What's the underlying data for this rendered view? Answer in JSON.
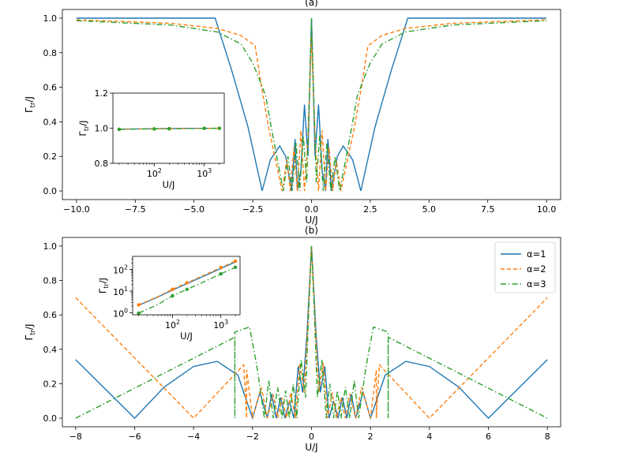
{
  "colors": {
    "s1": "#1f77b4",
    "s2": "#ff7f0e",
    "s3": "#2ca02c"
  },
  "chart_data": [
    {
      "id": "a",
      "type": "line",
      "title": "(a)",
      "xlabel": "U/J",
      "ylabel": "Γ_tr/J",
      "ylabel_main": "Γ",
      "ylabel_sub": "tr",
      "ylabel_tail": "/J",
      "xlim": [
        -10.6,
        10.6
      ],
      "ylim": [
        -0.05,
        1.05
      ],
      "xticks": [
        -10,
        -7.5,
        -5,
        -2.5,
        0,
        2.5,
        5,
        7.5,
        10
      ],
      "xtick_labels": [
        "−10.0",
        "−7.5",
        "−5.0",
        "−2.5",
        "0.0",
        "2.5",
        "5.0",
        "7.5",
        "10.0"
      ],
      "yticks": [
        0,
        0.2,
        0.4,
        0.6,
        0.8,
        1.0
      ],
      "ytick_labels": [
        "0.0",
        "0.2",
        "0.4",
        "0.6",
        "0.8",
        "1.0"
      ],
      "series": [
        {
          "name": "α=1",
          "x": [
            -10,
            -4.1,
            -3.4,
            -2.7,
            -2.1,
            -1.75,
            -1.35,
            -1.1,
            -0.85,
            -0.7,
            -0.6,
            -0.45,
            -0.3,
            -0.15,
            0,
            0.15,
            0.3,
            0.45,
            0.6,
            0.7,
            0.85,
            1.1,
            1.35,
            1.75,
            2.1,
            2.7,
            3.4,
            4.1,
            10
          ],
          "y": [
            1.0,
            1.0,
            0.7,
            0.37,
            0.0,
            0.18,
            0.26,
            0.2,
            0.0,
            0.3,
            0.0,
            0.12,
            0.5,
            0.2,
            1.0,
            0.2,
            0.5,
            0.12,
            0.0,
            0.3,
            0.0,
            0.2,
            0.26,
            0.18,
            0.0,
            0.37,
            0.7,
            1.0,
            1.0
          ]
        },
        {
          "name": "α=2",
          "x": [
            -10,
            -6,
            -4,
            -3,
            -2.4,
            -2.15,
            -1.8,
            -1.5,
            -1.25,
            -1.05,
            -0.9,
            -0.75,
            -0.6,
            -0.45,
            -0.3,
            -0.15,
            0,
            0.15,
            0.3,
            0.45,
            0.6,
            0.75,
            0.9,
            1.05,
            1.25,
            1.5,
            1.8,
            2.15,
            2.4,
            3,
            4,
            6,
            10
          ],
          "y": [
            0.99,
            0.97,
            0.94,
            0.9,
            0.84,
            0.62,
            0.35,
            0.16,
            0.0,
            0.18,
            0.0,
            0.25,
            0.0,
            0.35,
            0.0,
            0.3,
            0.9,
            0.3,
            0.0,
            0.35,
            0.0,
            0.25,
            0.0,
            0.18,
            0.0,
            0.16,
            0.35,
            0.62,
            0.84,
            0.9,
            0.94,
            0.97,
            0.99
          ]
        },
        {
          "name": "α=3",
          "x": [
            -10,
            -6,
            -4,
            -3,
            -2.5,
            -2.2,
            -1.95,
            -1.7,
            -1.45,
            -1.2,
            -1.0,
            -0.82,
            -0.66,
            -0.5,
            -0.35,
            -0.2,
            0,
            0.2,
            0.35,
            0.5,
            0.66,
            0.82,
            1.0,
            1.2,
            1.45,
            1.7,
            1.95,
            2.2,
            2.5,
            3,
            4,
            6,
            10
          ],
          "y": [
            0.985,
            0.96,
            0.92,
            0.85,
            0.74,
            0.64,
            0.55,
            0.36,
            0.18,
            0.0,
            0.2,
            0.0,
            0.28,
            0.0,
            0.32,
            0.05,
            1.0,
            0.05,
            0.32,
            0.0,
            0.28,
            0.0,
            0.2,
            0.0,
            0.18,
            0.36,
            0.55,
            0.64,
            0.74,
            0.85,
            0.92,
            0.96,
            0.985
          ]
        }
      ],
      "inset": {
        "type": "line",
        "xscale": "log",
        "xlabel": "U/J",
        "ylabel_main": "Γ",
        "ylabel_sub": "tr",
        "ylabel_tail": "/J",
        "xlim": [
          15,
          2500
        ],
        "ylim": [
          0.8,
          1.2
        ],
        "xticks": [
          100,
          1000
        ],
        "xtick_base": "10",
        "xtick_exp": [
          "2",
          "3"
        ],
        "yticks": [
          0.8,
          1.0,
          1.2
        ],
        "ytick_labels": [
          "0.8",
          "1.0",
          "1.2"
        ],
        "series": [
          {
            "name": "α=1",
            "x": [
              20,
              50,
              100,
              200,
              500,
              1000,
              2000
            ],
            "y": [
              0.995,
              0.996,
              0.997,
              0.998,
              0.999,
              0.999,
              1.0
            ]
          },
          {
            "name": "α=2",
            "x": [
              20,
              50,
              100,
              200,
              500,
              1000,
              2000
            ],
            "y": [
              0.994,
              0.995,
              0.996,
              0.997,
              0.998,
              0.999,
              0.999
            ]
          },
          {
            "name": "α=3",
            "x": [
              20,
              50,
              100,
              200,
              500,
              1000,
              2000
            ],
            "y": [
              0.993,
              0.995,
              0.996,
              0.997,
              0.998,
              0.999,
              0.999
            ]
          }
        ]
      }
    },
    {
      "id": "b",
      "type": "line",
      "title": "(b)",
      "xlabel": "U/J",
      "ylabel": "Γ_tr/J",
      "ylabel_main": "Γ",
      "ylabel_sub": "tr",
      "ylabel_tail": "/J",
      "xlim": [
        -8.45,
        8.45
      ],
      "ylim": [
        -0.05,
        1.05
      ],
      "xticks": [
        -8,
        -6,
        -4,
        -2,
        0,
        2,
        4,
        6,
        8
      ],
      "xtick_labels": [
        "−8",
        "−6",
        "−4",
        "−2",
        "0",
        "2",
        "4",
        "6",
        "8"
      ],
      "yticks": [
        0,
        0.2,
        0.4,
        0.6,
        0.8,
        1.0
      ],
      "ytick_labels": [
        "0.0",
        "0.2",
        "0.4",
        "0.6",
        "0.8",
        "1.0"
      ],
      "legend_position": "top-right",
      "series": [
        {
          "name": "α=1",
          "x": [
            -8,
            -6,
            -5,
            -4,
            -3.2,
            -2.5,
            -2.0,
            -1.75,
            -1.5,
            -1.35,
            -1.2,
            -1.05,
            -0.9,
            -0.75,
            -0.6,
            -0.45,
            -0.3,
            -0.15,
            0,
            0.15,
            0.3,
            0.45,
            0.6,
            0.75,
            0.9,
            1.05,
            1.2,
            1.35,
            1.5,
            1.75,
            2.0,
            2.5,
            3.2,
            4,
            5,
            6,
            8
          ],
          "y": [
            0.34,
            0.0,
            0.18,
            0.3,
            0.33,
            0.25,
            0.0,
            0.15,
            0.0,
            0.14,
            0.0,
            0.12,
            0.0,
            0.1,
            0.0,
            0.3,
            0.15,
            0.5,
            1.0,
            0.5,
            0.15,
            0.3,
            0.0,
            0.1,
            0.0,
            0.12,
            0.0,
            0.14,
            0.0,
            0.15,
            0.0,
            0.25,
            0.33,
            0.3,
            0.18,
            0.0,
            0.34
          ]
        },
        {
          "name": "α=2",
          "x": [
            -8,
            -4,
            -2.3,
            -2.2,
            -2.2,
            -2.0,
            -1.7,
            -1.5,
            -1.3,
            -1.15,
            -1.0,
            -0.85,
            -0.7,
            -0.55,
            -0.4,
            -0.25,
            -0.12,
            0,
            0.12,
            0.25,
            0.4,
            0.55,
            0.7,
            0.85,
            1.0,
            1.15,
            1.3,
            1.5,
            1.7,
            2.0,
            2.2,
            2.2,
            2.3,
            4,
            8
          ],
          "y": [
            0.7,
            0.0,
            0.31,
            0.0,
            0.28,
            0.0,
            0.18,
            0.0,
            0.14,
            0.0,
            0.12,
            0.0,
            0.15,
            0.0,
            0.32,
            0.15,
            0.55,
            1.0,
            0.55,
            0.15,
            0.32,
            0.0,
            0.15,
            0.0,
            0.12,
            0.0,
            0.14,
            0.0,
            0.18,
            0.0,
            0.28,
            0.0,
            0.31,
            0.0,
            0.7
          ]
        },
        {
          "name": "α=3",
          "x": [
            -8,
            -2.6,
            -2.6,
            -2.6,
            -2.1,
            -1.85,
            -1.6,
            -1.45,
            -1.3,
            -1.15,
            -1.0,
            -0.88,
            -0.75,
            -0.62,
            -0.5,
            -0.35,
            -0.2,
            -0.1,
            0,
            0.1,
            0.2,
            0.35,
            0.5,
            0.62,
            0.75,
            0.88,
            1.0,
            1.15,
            1.3,
            1.45,
            1.6,
            1.85,
            2.1,
            2.6,
            2.6,
            2.6,
            8
          ],
          "y": [
            0.0,
            0.47,
            0.0,
            0.5,
            0.53,
            0.3,
            0.0,
            0.22,
            0.0,
            0.18,
            0.0,
            0.16,
            0.0,
            0.2,
            0.0,
            0.34,
            0.12,
            0.6,
            1.0,
            0.6,
            0.12,
            0.34,
            0.0,
            0.2,
            0.0,
            0.16,
            0.0,
            0.18,
            0.0,
            0.22,
            0.0,
            0.3,
            0.53,
            0.5,
            0.0,
            0.47,
            0.0
          ]
        }
      ],
      "inset": {
        "type": "line",
        "xscale": "log",
        "yscale": "log",
        "xlabel": "U/J",
        "ylabel_main": "Γ",
        "ylabel_sub": "tr",
        "ylabel_tail": "/J",
        "xlim": [
          15,
          2500
        ],
        "ylim": [
          0.8,
          400
        ],
        "xticks": [
          100,
          1000
        ],
        "xtick_base": "10",
        "xtick_exp": [
          "2",
          "3"
        ],
        "yticks": [
          1,
          10,
          100
        ],
        "ytick_base": "10",
        "ytick_exp": [
          "0",
          "1",
          "2"
        ],
        "series": [
          {
            "name": "α=1",
            "x": [
              20,
              50,
              100,
              200,
              500,
              1000,
              2000
            ],
            "y": [
              2.2,
              5.3,
              11,
              22,
              55,
              110,
              220
            ]
          },
          {
            "name": "α=2",
            "x": [
              20,
              50,
              100,
              200,
              500,
              1000,
              2000
            ],
            "y": [
              2.3,
              5.5,
              12,
              24,
              60,
              120,
              240
            ]
          },
          {
            "name": "α=3",
            "x": [
              20,
              50,
              100,
              200,
              500,
              1000,
              2000
            ],
            "y": [
              0.95,
              2.4,
              6,
              12,
              30,
              62,
              125
            ]
          }
        ]
      }
    }
  ]
}
